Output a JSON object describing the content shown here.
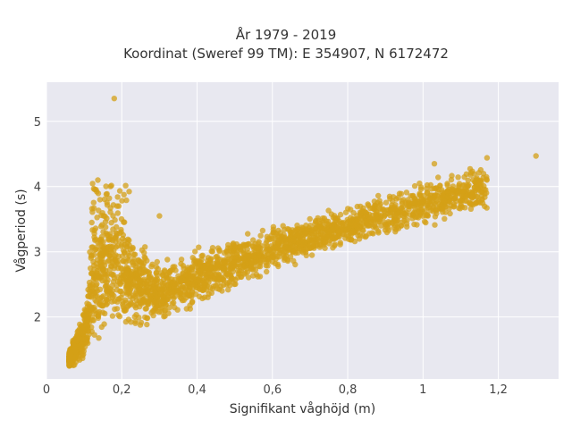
{
  "chart_data": {
    "type": "scatter",
    "title": "År 1979 - 2019",
    "subtitle": "Koordinat (Sweref 99 TM): E 354907, N 6172472",
    "xlabel": "Signifikant våghöjd (m)",
    "ylabel": "Vågperiod (s)",
    "xlim": [
      0,
      1.36
    ],
    "ylim": [
      1.05,
      5.6
    ],
    "x_ticks": [
      0,
      0.2,
      0.4,
      0.6,
      0.8,
      1,
      1.2
    ],
    "x_tick_labels": [
      "0",
      "0,2",
      "0,4",
      "0,6",
      "0,8",
      "1",
      "1,2"
    ],
    "y_ticks": [
      2,
      3,
      4,
      5
    ],
    "y_tick_labels": [
      "2",
      "3",
      "4",
      "5"
    ],
    "grid": true,
    "color": "#d4a017",
    "background": "#e8e8f0",
    "approximate_envelope": [
      {
        "x": 0.06,
        "y_low": 1.2,
        "y_high": 1.5
      },
      {
        "x": 0.1,
        "y_low": 1.25,
        "y_high": 2.2
      },
      {
        "x": 0.12,
        "y_low": 1.3,
        "y_high": 3.5
      },
      {
        "x": 0.16,
        "y_low": 1.5,
        "y_high": 4.1
      },
      {
        "x": 0.2,
        "y_low": 1.6,
        "y_high": 3.6
      },
      {
        "x": 0.3,
        "y_low": 1.85,
        "y_high": 2.9
      },
      {
        "x": 0.4,
        "y_low": 2.1,
        "y_high": 3.1
      },
      {
        "x": 0.5,
        "y_low": 2.4,
        "y_high": 3.3
      },
      {
        "x": 0.6,
        "y_low": 2.65,
        "y_high": 3.45
      },
      {
        "x": 0.7,
        "y_low": 2.85,
        "y_high": 3.6
      },
      {
        "x": 0.8,
        "y_low": 3.0,
        "y_high": 3.75
      },
      {
        "x": 0.9,
        "y_low": 3.15,
        "y_high": 4.0
      },
      {
        "x": 1.0,
        "y_low": 3.3,
        "y_high": 4.15
      },
      {
        "x": 1.1,
        "y_low": 3.45,
        "y_high": 4.3
      },
      {
        "x": 1.17,
        "y_low": 3.55,
        "y_high": 4.45
      }
    ],
    "outliers": [
      {
        "x": 0.18,
        "y": 5.35
      },
      {
        "x": 1.3,
        "y": 4.47
      },
      {
        "x": 1.17,
        "y": 4.44
      },
      {
        "x": 1.03,
        "y": 4.35
      },
      {
        "x": 0.3,
        "y": 3.55
      }
    ]
  }
}
